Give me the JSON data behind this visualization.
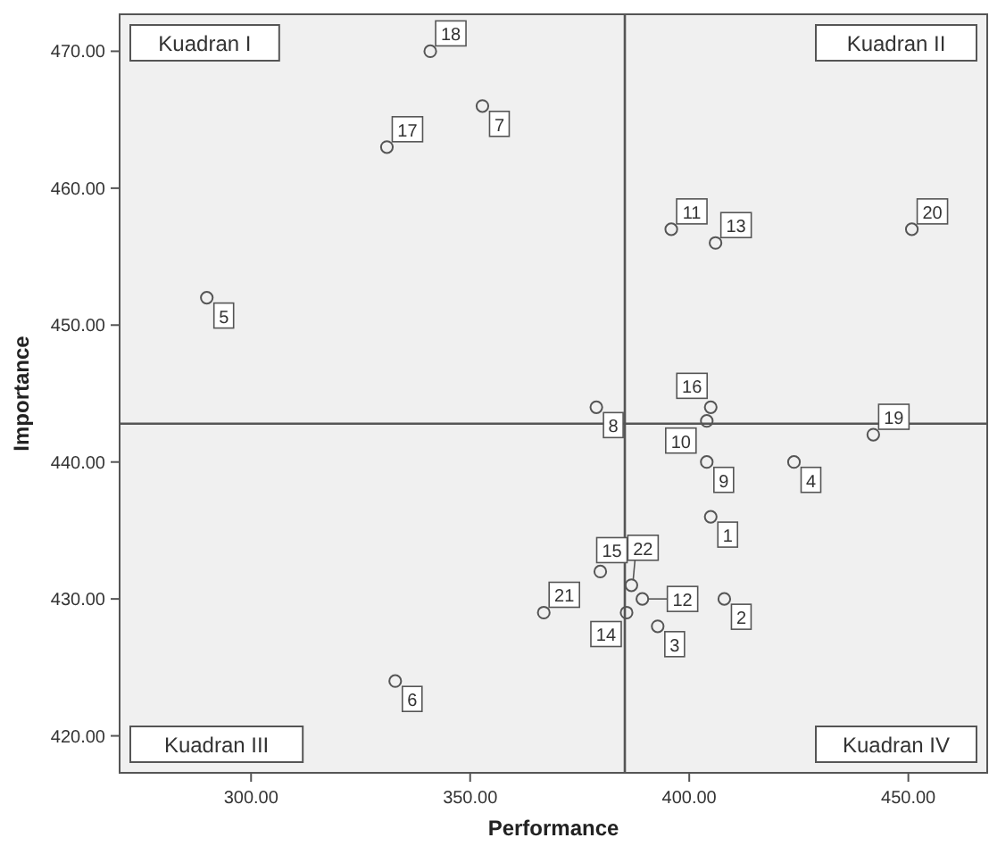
{
  "chart_data": {
    "type": "scatter",
    "xlabel": "Performance",
    "ylabel": "Importance",
    "x": [
      404.9,
      408,
      392.8,
      423.9,
      289.9,
      332.9,
      352.8,
      378.8,
      404,
      404,
      395.9,
      389.3,
      406,
      385.7,
      379.7,
      404.9,
      331,
      340.9,
      442,
      450.8,
      366.8,
      386.8
    ],
    "values": [
      436,
      430,
      428,
      440,
      452,
      424,
      466,
      444,
      440,
      443,
      457,
      430,
      456,
      429,
      432,
      444,
      463,
      470,
      442,
      457,
      429,
      431
    ],
    "color": "#555555",
    "marker": "circle",
    "grid": false,
    "xlim": [
      270,
      468
    ],
    "ylim": [
      417.3,
      472.7
    ],
    "xticks": [
      {
        "value": 300,
        "label": "300.00"
      },
      {
        "value": 350,
        "label": "350.00"
      },
      {
        "value": 400,
        "label": "400.00"
      },
      {
        "value": 450,
        "label": "450.00"
      }
    ],
    "yticks": [
      {
        "value": 420,
        "label": "420.00"
      },
      {
        "value": 430,
        "label": "430.00"
      },
      {
        "value": 440,
        "label": "440.00"
      },
      {
        "value": 450,
        "label": "450.00"
      },
      {
        "value": 460,
        "label": "460.00"
      },
      {
        "value": 470,
        "label": "470.00"
      }
    ],
    "ref_lines": [
      {
        "axis": "x",
        "value": 385.3,
        "color": "#555555"
      },
      {
        "axis": "y",
        "value": 442.8,
        "color": "#555555"
      }
    ],
    "annotations": [
      {
        "text": "1",
        "x": 404.9,
        "y": 436
      },
      {
        "text": "2",
        "x": 408,
        "y": 430
      },
      {
        "text": "3",
        "x": 392.8,
        "y": 428
      },
      {
        "text": "4",
        "x": 423.9,
        "y": 440
      },
      {
        "text": "5",
        "x": 289.9,
        "y": 452
      },
      {
        "text": "6",
        "x": 332.9,
        "y": 424
      },
      {
        "text": "7",
        "x": 352.8,
        "y": 466
      },
      {
        "text": "8",
        "x": 378.8,
        "y": 444
      },
      {
        "text": "9",
        "x": 404,
        "y": 440
      },
      {
        "text": "10",
        "x": 404,
        "y": 443
      },
      {
        "text": "11",
        "x": 395.9,
        "y": 457
      },
      {
        "text": "12",
        "x": 389.3,
        "y": 430
      },
      {
        "text": "13",
        "x": 406,
        "y": 456
      },
      {
        "text": "14",
        "x": 385.7,
        "y": 429
      },
      {
        "text": "15",
        "x": 379.7,
        "y": 432
      },
      {
        "text": "16",
        "x": 404.9,
        "y": 444
      },
      {
        "text": "17",
        "x": 331,
        "y": 463
      },
      {
        "text": "18",
        "x": 340.9,
        "y": 470
      },
      {
        "text": "19",
        "x": 442,
        "y": 442
      },
      {
        "text": "20",
        "x": 450.8,
        "y": 457
      },
      {
        "text": "21",
        "x": 366.8,
        "y": 429
      },
      {
        "text": "22",
        "x": 386.8,
        "y": 431
      },
      "Kuadran I",
      "Kuadran II",
      "Kuadran III",
      "Kuadran IV"
    ]
  }
}
